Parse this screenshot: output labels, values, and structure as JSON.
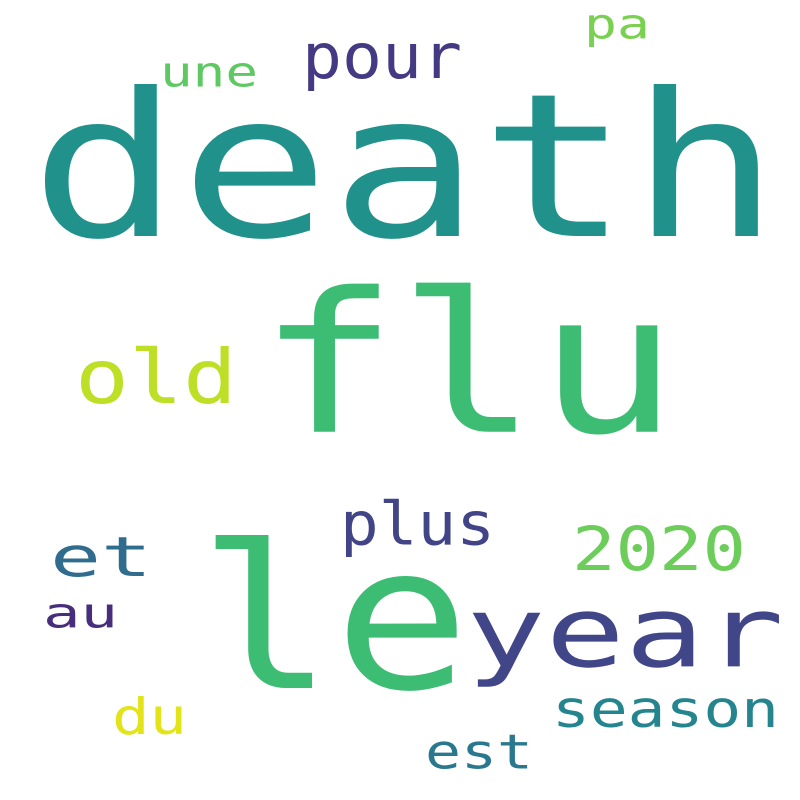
{
  "words": [
    {
      "text": "death",
      "color": "#21918c"
    },
    {
      "text": "flu",
      "color": "#3dbc74"
    },
    {
      "text": "le",
      "color": "#3dbc74"
    },
    {
      "text": "year",
      "color": "#404688"
    },
    {
      "text": "et",
      "color": "#2f6c8e"
    },
    {
      "text": "old",
      "color": "#bddf26"
    },
    {
      "text": "2020",
      "color": "#6ccd5a"
    },
    {
      "text": "pour",
      "color": "#443983"
    },
    {
      "text": "plus",
      "color": "#414487"
    },
    {
      "text": "season",
      "color": "#25858e"
    },
    {
      "text": "est",
      "color": "#2a788e"
    },
    {
      "text": "du",
      "color": "#e2e418"
    },
    {
      "text": "au",
      "color": "#472d7b"
    },
    {
      "text": "une",
      "color": "#5ec962"
    },
    {
      "text": "pa",
      "color": "#7ad151"
    }
  ]
}
